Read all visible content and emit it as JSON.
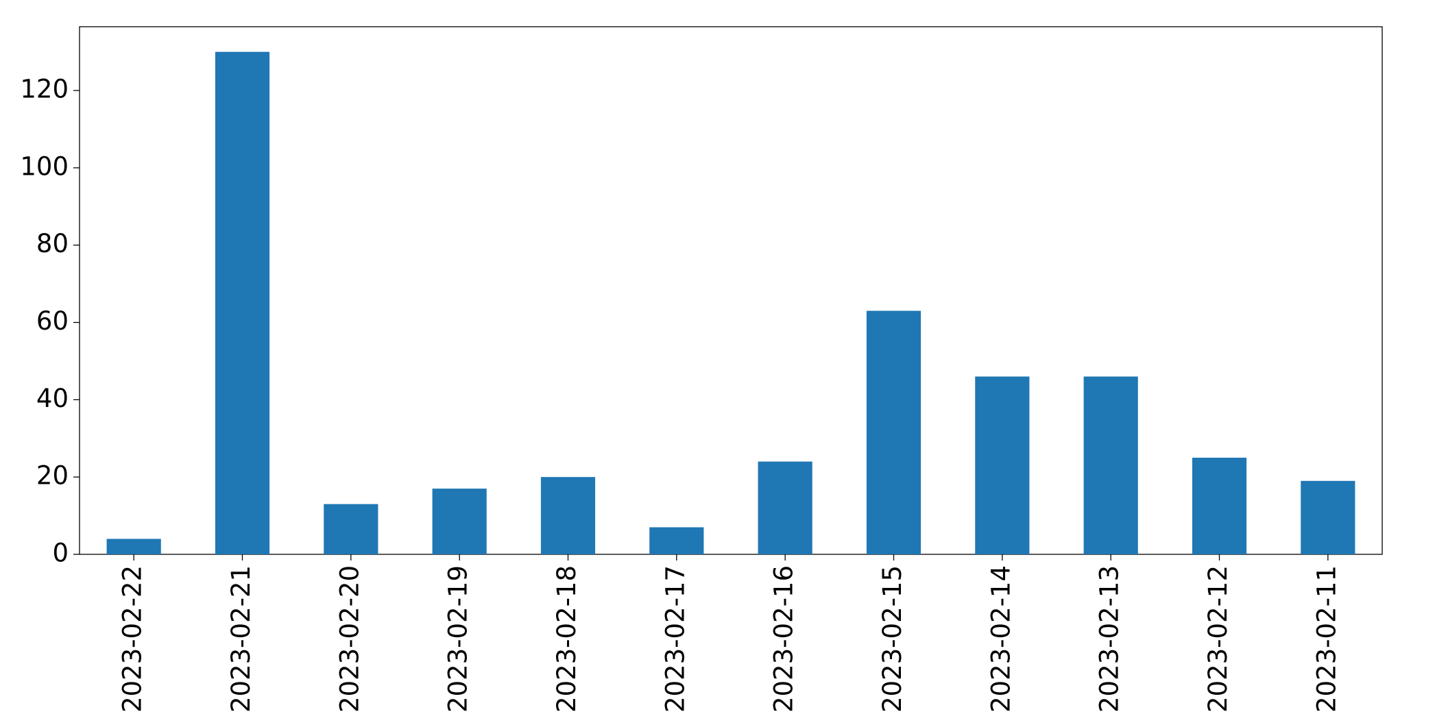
{
  "chart_data": {
    "type": "bar",
    "categories": [
      "2023-02-22",
      "2023-02-21",
      "2023-02-20",
      "2023-02-19",
      "2023-02-18",
      "2023-02-17",
      "2023-02-16",
      "2023-02-15",
      "2023-02-14",
      "2023-02-13",
      "2023-02-12",
      "2023-02-11"
    ],
    "values": [
      4,
      130,
      13,
      17,
      20,
      7,
      24,
      63,
      46,
      46,
      25,
      19
    ],
    "color": "#1f77b4",
    "ylim": [
      0,
      136.5
    ],
    "yticks": [
      0,
      20,
      40,
      60,
      80,
      100,
      120
    ],
    "grid": false
  }
}
